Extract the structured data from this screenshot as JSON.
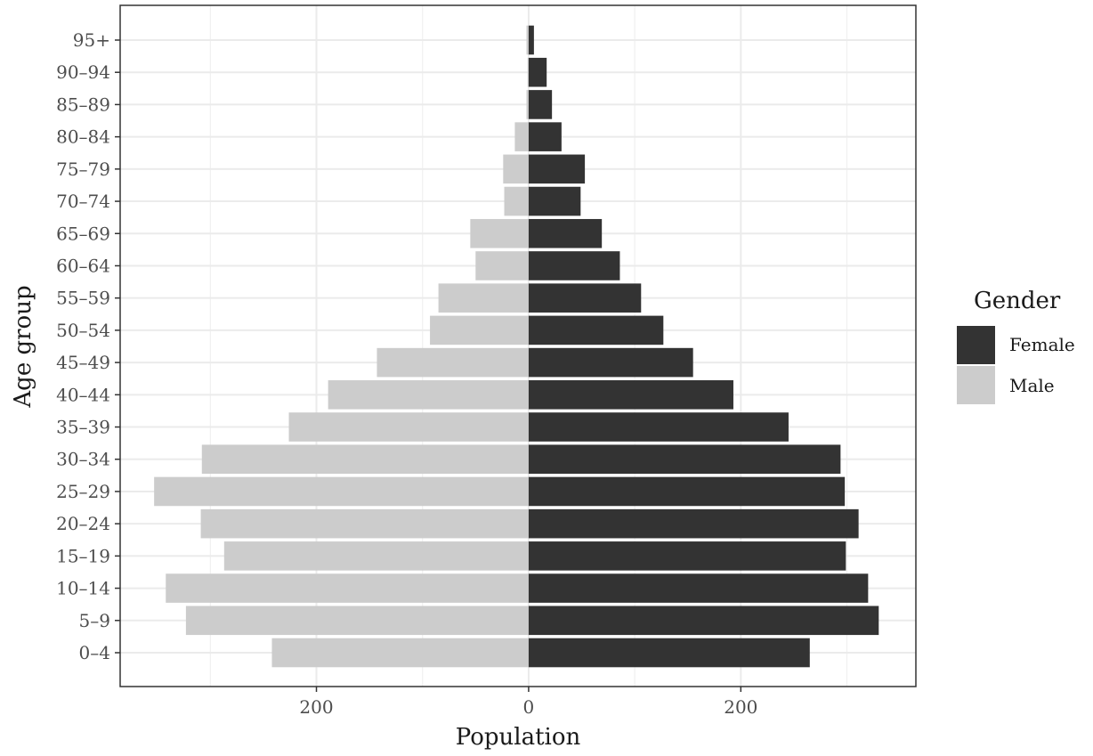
{
  "chart_data": {
    "type": "bar",
    "orientation": "horizontal",
    "layout": "population-pyramid",
    "xlabel": "Population",
    "ylabel": "Age group",
    "categories": [
      "0–4",
      "5–9",
      "10–14",
      "15–19",
      "20–24",
      "25–29",
      "30–34",
      "35–39",
      "40–44",
      "45–49",
      "50–54",
      "55–59",
      "60–64",
      "65–69",
      "70–74",
      "75–79",
      "80–84",
      "85–89",
      "90–94",
      "95+"
    ],
    "series": [
      {
        "name": "Female",
        "color": "#333333",
        "values": [
          265,
          330,
          320,
          299,
          311,
          298,
          294,
          245,
          193,
          155,
          127,
          106,
          86,
          69,
          49,
          53,
          31,
          22,
          17,
          5
        ]
      },
      {
        "name": "Male",
        "color": "#cccccc",
        "values": [
          242,
          323,
          342,
          287,
          309,
          353,
          308,
          226,
          189,
          143,
          93,
          85,
          50,
          55,
          23,
          24,
          13,
          2,
          1,
          2
        ]
      }
    ],
    "xlim": [
      -385,
      365
    ],
    "x_ticks": [
      {
        "value": -200,
        "label": "200"
      },
      {
        "value": 0,
        "label": "0"
      },
      {
        "value": 200,
        "label": "200"
      }
    ],
    "grid": true,
    "legend": {
      "title": "Gender",
      "position": "right",
      "entries": [
        "Female",
        "Male"
      ]
    }
  }
}
